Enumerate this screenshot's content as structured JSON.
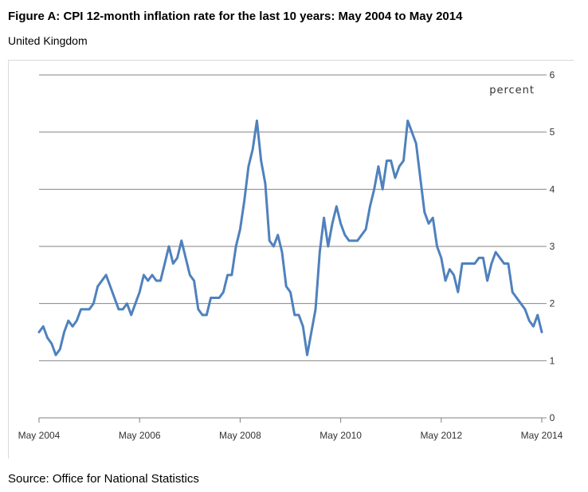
{
  "figure": {
    "title": "Figure A: CPI 12-month inflation rate for the last 10 years: May 2004 to May 2014",
    "subtitle": "United Kingdom",
    "source": "Source: Office for National Statistics"
  },
  "chart_data": {
    "type": "line",
    "unit_label": "percent",
    "xlabel": "",
    "ylabel": "",
    "ylim": [
      0,
      6
    ],
    "yticks": [
      0,
      1,
      2,
      3,
      4,
      5,
      6
    ],
    "x_start": "May 2004",
    "x_end": "May 2014",
    "xtick_labels": [
      "May 2004",
      "May 2006",
      "May 2008",
      "May 2010",
      "May 2012",
      "May 2014"
    ],
    "grid": true,
    "line_color": "#4f81bd",
    "series": [
      {
        "values": [
          1.5,
          1.6,
          1.4,
          1.3,
          1.1,
          1.2,
          1.5,
          1.7,
          1.6,
          1.7,
          1.9,
          1.9,
          1.9,
          2.0,
          2.3,
          2.4,
          2.5,
          2.3,
          2.1,
          1.9,
          1.9,
          2.0,
          1.8,
          2.0,
          2.2,
          2.5,
          2.4,
          2.5,
          2.4,
          2.4,
          2.7,
          3.0,
          2.7,
          2.8,
          3.1,
          2.8,
          2.5,
          2.4,
          1.9,
          1.8,
          1.8,
          2.1,
          2.1,
          2.1,
          2.2,
          2.5,
          2.5,
          3.0,
          3.3,
          3.8,
          4.4,
          4.7,
          5.2,
          4.5,
          4.1,
          3.1,
          3.0,
          3.2,
          2.9,
          2.3,
          2.2,
          1.8,
          1.8,
          1.6,
          1.1,
          1.5,
          1.9,
          2.9,
          3.5,
          3.0,
          3.4,
          3.7,
          3.4,
          3.2,
          3.1,
          3.1,
          3.1,
          3.2,
          3.3,
          3.7,
          4.0,
          4.4,
          4.0,
          4.5,
          4.5,
          4.2,
          4.4,
          4.5,
          5.2,
          5.0,
          4.8,
          4.2,
          3.6,
          3.4,
          3.5,
          3.0,
          2.8,
          2.4,
          2.6,
          2.5,
          2.2,
          2.7,
          2.7,
          2.7,
          2.7,
          2.8,
          2.8,
          2.4,
          2.7,
          2.9,
          2.8,
          2.7,
          2.7,
          2.2,
          2.1,
          2.0,
          1.9,
          1.7,
          1.6,
          1.8,
          1.5
        ]
      }
    ]
  }
}
